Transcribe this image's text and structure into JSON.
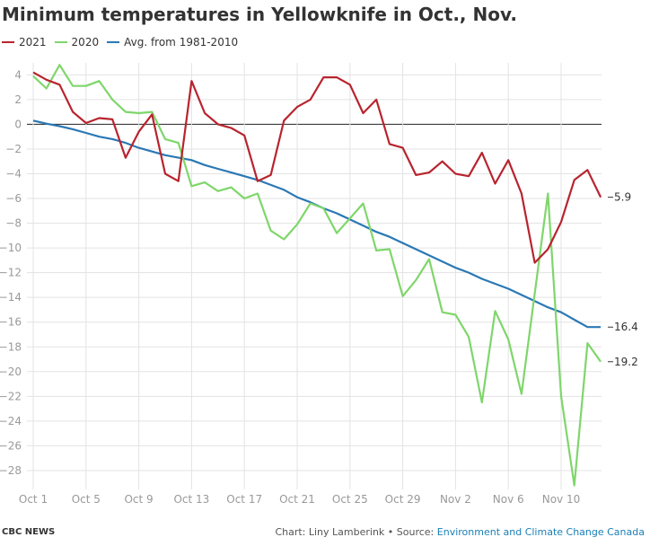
{
  "title": "Minimum temperatures in Yellowknife in Oct., Nov.",
  "legend": [
    {
      "label": "2021",
      "color": "#b8242e"
    },
    {
      "label": "2020",
      "color": "#7fd66b"
    },
    {
      "label": "Avg. from 1981-2010",
      "color": "#2a78b5"
    }
  ],
  "footer": {
    "brand": "CBC NEWS",
    "credit": "Chart: Liny Lamberink • Source: ",
    "source": "Environment and Climate Change Canada"
  },
  "chart_data": {
    "type": "line",
    "title": "Minimum temperatures in Yellowknife in Oct., Nov.",
    "xlabel": "",
    "ylabel": "",
    "ylim": [
      -29.5,
      5
    ],
    "grid": true,
    "legend_position": "top-left",
    "x": [
      "Oct 1",
      "Oct 2",
      "Oct 3",
      "Oct 4",
      "Oct 5",
      "Oct 6",
      "Oct 7",
      "Oct 8",
      "Oct 9",
      "Oct 10",
      "Oct 11",
      "Oct 12",
      "Oct 13",
      "Oct 14",
      "Oct 15",
      "Oct 16",
      "Oct 17",
      "Oct 18",
      "Oct 19",
      "Oct 20",
      "Oct 21",
      "Oct 22",
      "Oct 23",
      "Oct 24",
      "Oct 25",
      "Oct 26",
      "Oct 27",
      "Oct 28",
      "Oct 29",
      "Oct 30",
      "Oct 31",
      "Nov 1",
      "Nov 2",
      "Nov 3",
      "Nov 4",
      "Nov 5",
      "Nov 6",
      "Nov 7",
      "Nov 8",
      "Nov 9",
      "Nov 10",
      "Nov 11",
      "Nov 12",
      "Nov 13"
    ],
    "x_ticks": [
      "Oct 1",
      "Oct 5",
      "Oct 9",
      "Oct 13",
      "Oct 17",
      "Oct 21",
      "Oct 25",
      "Oct 29",
      "Nov 2",
      "Nov 6",
      "Nov 10"
    ],
    "y_ticks": [
      4,
      2,
      0,
      -2,
      -4,
      -6,
      -8,
      -10,
      -12,
      -14,
      -16,
      -18,
      -20,
      -22,
      -24,
      -26,
      -28
    ],
    "series": [
      {
        "name": "2021",
        "color": "#b8242e",
        "end_label": "−5.9",
        "values": [
          4.2,
          3.6,
          3.2,
          1.0,
          0.1,
          0.5,
          0.4,
          -2.7,
          -0.6,
          0.8,
          -4.0,
          -4.6,
          3.5,
          0.9,
          0.0,
          -0.3,
          -0.9,
          -4.6,
          -4.1,
          0.3,
          1.4,
          2.0,
          3.8,
          3.8,
          3.2,
          0.9,
          2.0,
          -1.6,
          -1.9,
          -4.1,
          -3.9,
          -3.0,
          -4.0,
          -4.2,
          -2.3,
          -4.8,
          -2.9,
          -5.6,
          -11.2,
          -10.1,
          -7.9,
          -4.5,
          -3.7,
          -5.9
        ]
      },
      {
        "name": "2020",
        "color": "#7fd66b",
        "end_label": "−19.2",
        "values": [
          3.9,
          2.9,
          4.8,
          3.1,
          3.1,
          3.5,
          2.0,
          1.0,
          0.9,
          1.0,
          -1.2,
          -1.5,
          -5.0,
          -4.7,
          -5.4,
          -5.1,
          -6.0,
          -5.6,
          -8.6,
          -9.3,
          -8.1,
          -6.4,
          -6.8,
          -8.8,
          -7.6,
          -6.4,
          -10.2,
          -10.1,
          -13.9,
          -12.6,
          -10.9,
          -15.2,
          -15.4,
          -17.2,
          -22.5,
          -15.1,
          -17.4,
          -21.8,
          -13.7,
          -5.6,
          -22.0,
          -29.2,
          -17.7,
          -19.2
        ]
      },
      {
        "name": "Avg. from 1981-2010",
        "color": "#2a78b5",
        "end_label": "−16.4",
        "values": [
          0.3,
          0.05,
          -0.15,
          -0.4,
          -0.7,
          -1.0,
          -1.2,
          -1.5,
          -1.9,
          -2.2,
          -2.5,
          -2.7,
          -2.9,
          -3.3,
          -3.6,
          -3.9,
          -4.2,
          -4.5,
          -4.9,
          -5.3,
          -5.9,
          -6.3,
          -6.8,
          -7.2,
          -7.7,
          -8.2,
          -8.7,
          -9.1,
          -9.6,
          -10.1,
          -10.6,
          -11.1,
          -11.6,
          -12.0,
          -12.5,
          -12.9,
          -13.3,
          -13.8,
          -14.3,
          -14.8,
          -15.2,
          -15.8,
          -16.4,
          -16.4
        ]
      }
    ]
  }
}
